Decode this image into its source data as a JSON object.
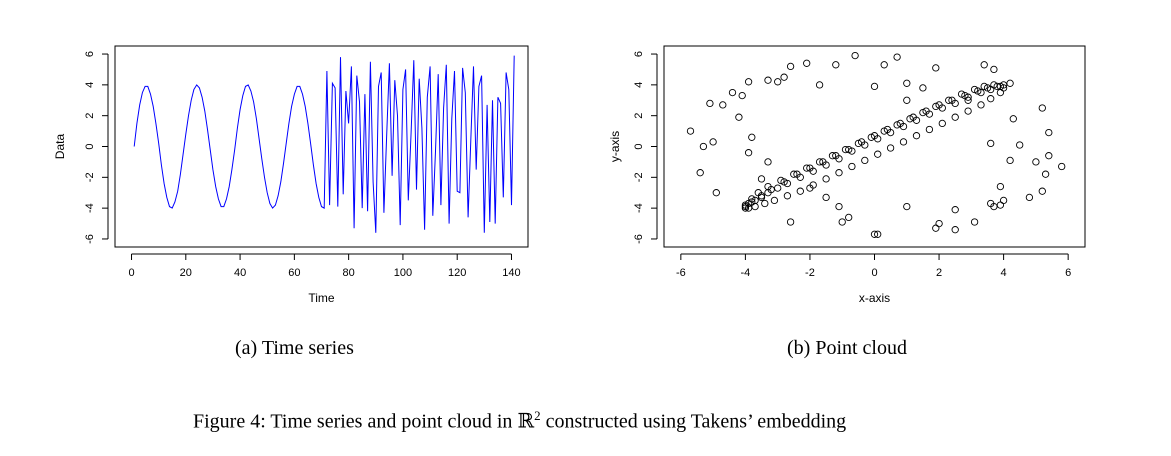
{
  "chart_data": [
    {
      "type": "line",
      "xlabel": "Time",
      "ylabel": "Data",
      "xlim": [
        0,
        140
      ],
      "ylim": [
        -6,
        6
      ],
      "xticks": [
        0,
        20,
        40,
        60,
        80,
        100,
        120,
        140
      ],
      "yticks": [
        -6,
        -4,
        -2,
        0,
        2,
        4,
        6
      ],
      "series": [
        {
          "color": "#0000ff",
          "x_start": 1,
          "x_step": 1,
          "values": [
            0,
            1.5,
            2.7,
            3.5,
            3.9,
            3.9,
            3.4,
            2.6,
            1.5,
            0.2,
            -1.2,
            -2.4,
            -3.3,
            -3.9,
            -4,
            -3.6,
            -2.9,
            -1.8,
            -0.5,
            0.8,
            2,
            3,
            3.7,
            4,
            3.8,
            3.2,
            2.3,
            1.1,
            -0.2,
            -1.5,
            -2.6,
            -3.4,
            -3.9,
            -3.9,
            -3.4,
            -2.6,
            -1.5,
            -0.2,
            1.2,
            2.4,
            3.3,
            3.9,
            4,
            3.6,
            2.9,
            1.8,
            0.5,
            -0.8,
            -2,
            -3,
            -3.7,
            -4,
            -3.8,
            -3.2,
            -2.3,
            -1.1,
            0.2,
            1.5,
            2.6,
            3.4,
            3.9,
            3.9,
            3.4,
            2.6,
            1.5,
            0.2,
            -1.2,
            -2.4,
            -3.3,
            -3.9,
            -4,
            4.9,
            -3.8,
            4.1,
            3.8,
            -3.9,
            5.8,
            -3.1,
            3.6,
            1.5,
            5.2,
            -5.3,
            4.6,
            2.9,
            -4.0,
            3.4,
            -4.2,
            5.5,
            -2.3,
            -5.6,
            3.9,
            4.8,
            -4.3,
            0.6,
            5.4,
            -1.9,
            4.3,
            2.0,
            -5.1,
            3.7,
            5.0,
            -3.5,
            0.9,
            5.6,
            -2.8,
            4.4,
            1.2,
            -5.4,
            3.2,
            5.2,
            -4.5,
            -0.3,
            4.7,
            -3.8,
            2.5,
            5.3,
            -5.0,
            1.8,
            4.9,
            -2.9,
            -3.0,
            5.1,
            3.5,
            -4.6,
            0.4,
            5.2,
            -1.5,
            3.9,
            4.6,
            -5.6,
            2.7,
            -4.9,
            3.0,
            -5.0,
            3.2,
            2.8,
            -3.3,
            4.8,
            3.7,
            -3.8,
            5.9
          ]
        }
      ]
    },
    {
      "type": "scatter",
      "xlabel": "x-axis",
      "ylabel": "y-axis",
      "xlim": [
        -6,
        6
      ],
      "ylim": [
        -6,
        6
      ],
      "xticks": [
        -6,
        -4,
        -2,
        0,
        2,
        4,
        6
      ],
      "yticks": [
        -6,
        -4,
        -2,
        0,
        2,
        4,
        6
      ],
      "marker": "open-circle",
      "points": [
        [
          -4.0,
          -4.0
        ],
        [
          -3.8,
          -3.6
        ],
        [
          -3.5,
          -3.2
        ],
        [
          -3.2,
          -2.8
        ],
        [
          -2.8,
          -2.3
        ],
        [
          -2.4,
          -1.8
        ],
        [
          -2.0,
          -1.4
        ],
        [
          -1.6,
          -1.0
        ],
        [
          -1.2,
          -0.6
        ],
        [
          -0.8,
          -0.2
        ],
        [
          -0.4,
          0.3
        ],
        [
          0.0,
          0.7
        ],
        [
          0.4,
          1.1
        ],
        [
          0.8,
          1.5
        ],
        [
          1.2,
          1.9
        ],
        [
          1.6,
          2.3
        ],
        [
          2.0,
          2.7
        ],
        [
          2.4,
          3.0
        ],
        [
          2.8,
          3.3
        ],
        [
          3.2,
          3.6
        ],
        [
          3.5,
          3.8
        ],
        [
          3.8,
          3.9
        ],
        [
          4.0,
          3.8
        ],
        [
          3.9,
          3.5
        ],
        [
          3.6,
          3.1
        ],
        [
          3.3,
          2.7
        ],
        [
          2.9,
          2.3
        ],
        [
          2.5,
          1.9
        ],
        [
          2.1,
          1.5
        ],
        [
          1.7,
          1.1
        ],
        [
          1.3,
          0.7
        ],
        [
          0.9,
          0.3
        ],
        [
          0.5,
          -0.1
        ],
        [
          0.1,
          -0.5
        ],
        [
          -0.3,
          -0.9
        ],
        [
          -0.7,
          -1.3
        ],
        [
          -1.1,
          -1.7
        ],
        [
          -1.5,
          -2.1
        ],
        [
          -1.9,
          -2.5
        ],
        [
          -2.3,
          -2.9
        ],
        [
          -2.7,
          -3.2
        ],
        [
          -3.1,
          -3.5
        ],
        [
          -3.4,
          -3.7
        ],
        [
          -3.7,
          -3.9
        ],
        [
          -3.9,
          -4.0
        ],
        [
          -4.0,
          -3.9
        ],
        [
          -3.9,
          -3.7
        ],
        [
          -3.7,
          -3.5
        ],
        [
          -3.5,
          -3.3
        ],
        [
          -3.3,
          -3.0
        ],
        [
          -3.0,
          -2.7
        ],
        [
          -2.7,
          -2.4
        ],
        [
          -2.3,
          -2.0
        ],
        [
          -1.9,
          -1.6
        ],
        [
          -1.5,
          -1.2
        ],
        [
          -1.1,
          -0.8
        ],
        [
          -0.7,
          -0.3
        ],
        [
          -0.3,
          0.1
        ],
        [
          0.1,
          0.5
        ],
        [
          0.5,
          0.9
        ],
        [
          0.9,
          1.3
        ],
        [
          1.3,
          1.7
        ],
        [
          1.7,
          2.1
        ],
        [
          2.1,
          2.5
        ],
        [
          2.5,
          2.8
        ],
        [
          2.9,
          3.2
        ],
        [
          3.3,
          3.5
        ],
        [
          3.6,
          3.7
        ],
        [
          3.9,
          3.9
        ],
        [
          4.0,
          4.0
        ],
        [
          3.7,
          4.0
        ],
        [
          3.4,
          3.9
        ],
        [
          3.1,
          3.7
        ],
        [
          2.7,
          3.4
        ],
        [
          2.3,
          3.0
        ],
        [
          1.9,
          2.6
        ],
        [
          1.5,
          2.2
        ],
        [
          1.1,
          1.8
        ],
        [
          0.7,
          1.4
        ],
        [
          0.3,
          1.0
        ],
        [
          -0.1,
          0.6
        ],
        [
          -0.5,
          0.2
        ],
        [
          -0.9,
          -0.2
        ],
        [
          -1.3,
          -0.6
        ],
        [
          -1.7,
          -1.0
        ],
        [
          -2.1,
          -1.4
        ],
        [
          -2.5,
          -1.8
        ],
        [
          -2.9,
          -2.2
        ],
        [
          -3.3,
          -2.6
        ],
        [
          -3.6,
          -3.0
        ],
        [
          -3.8,
          -3.4
        ],
        [
          -4.0,
          -3.8
        ],
        [
          -5.7,
          1.0
        ],
        [
          -5.4,
          -1.7
        ],
        [
          -5.3,
          0.0
        ],
        [
          -5.1,
          2.8
        ],
        [
          -5.0,
          0.3
        ],
        [
          -4.9,
          -3.0
        ],
        [
          -4.7,
          2.7
        ],
        [
          -4.4,
          3.5
        ],
        [
          -4.2,
          1.9
        ],
        [
          -4.1,
          3.3
        ],
        [
          -3.9,
          4.2
        ],
        [
          -3.9,
          -0.4
        ],
        [
          -3.8,
          0.6
        ],
        [
          -3.5,
          -2.1
        ],
        [
          -3.3,
          4.3
        ],
        [
          -3.3,
          -1.0
        ],
        [
          -3.0,
          4.2
        ],
        [
          -2.8,
          4.5
        ],
        [
          -2.6,
          5.2
        ],
        [
          -2.6,
          -4.9
        ],
        [
          -2.1,
          5.4
        ],
        [
          -2.0,
          -2.7
        ],
        [
          -1.7,
          4.0
        ],
        [
          -1.5,
          -3.3
        ],
        [
          -1.2,
          5.3
        ],
        [
          -1.1,
          -3.9
        ],
        [
          -1.0,
          -4.9
        ],
        [
          -0.8,
          -4.6
        ],
        [
          -0.6,
          5.9
        ],
        [
          0.0,
          3.9
        ],
        [
          0.0,
          -5.7
        ],
        [
          0.1,
          -5.7
        ],
        [
          0.3,
          5.3
        ],
        [
          0.7,
          5.8
        ],
        [
          1.0,
          4.1
        ],
        [
          1.0,
          3.0
        ],
        [
          1.0,
          -3.9
        ],
        [
          1.5,
          3.8
        ],
        [
          1.9,
          5.1
        ],
        [
          1.9,
          -5.3
        ],
        [
          2.0,
          -5.0
        ],
        [
          2.5,
          -4.1
        ],
        [
          2.5,
          -5.4
        ],
        [
          2.9,
          3.0
        ],
        [
          3.1,
          -4.9
        ],
        [
          3.4,
          5.3
        ],
        [
          3.6,
          0.2
        ],
        [
          3.6,
          -3.7
        ],
        [
          3.7,
          5.0
        ],
        [
          3.7,
          -3.9
        ],
        [
          3.9,
          -3.8
        ],
        [
          3.9,
          -2.6
        ],
        [
          4.0,
          -3.5
        ],
        [
          4.2,
          4.1
        ],
        [
          4.2,
          -0.9
        ],
        [
          4.3,
          1.8
        ],
        [
          4.5,
          0.1
        ],
        [
          4.8,
          -3.3
        ],
        [
          5.0,
          -1.0
        ],
        [
          5.2,
          2.5
        ],
        [
          5.2,
          -2.9
        ],
        [
          5.3,
          -1.8
        ],
        [
          5.4,
          -0.6
        ],
        [
          5.4,
          0.9
        ],
        [
          5.8,
          -1.3
        ]
      ]
    }
  ],
  "captions": {
    "a": "(a)  Time series",
    "b": "(b)  Point cloud",
    "figure_prefix": "Figure 4: Time series and point cloud in ",
    "figure_symbol": "ℝ",
    "figure_superscript": "2",
    "figure_suffix": " constructed using Takens’ embedding"
  }
}
